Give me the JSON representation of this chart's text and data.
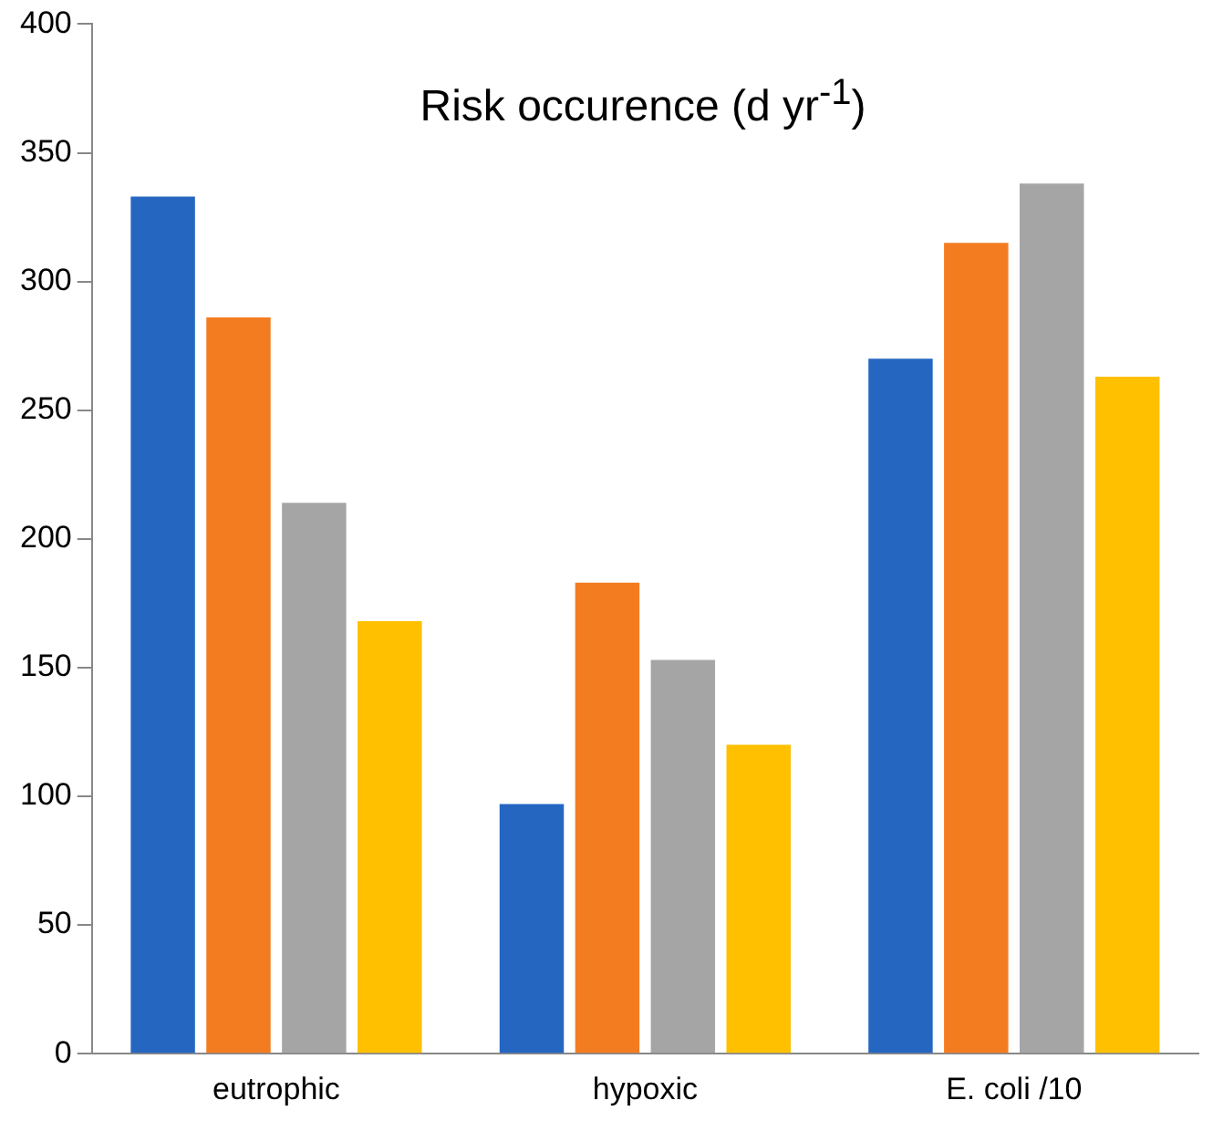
{
  "chart_data": {
    "type": "bar",
    "title": "Risk occurence (d yr$^{-1}$)",
    "categories": [
      "eutrophic",
      "hypoxic",
      "E. coli /10"
    ],
    "series": [
      {
        "color": "#2566c1",
        "values": [
          333,
          97,
          270
        ]
      },
      {
        "color": "#f47c20",
        "values": [
          286,
          183,
          315
        ]
      },
      {
        "color": "#a5a5a5",
        "values": [
          214,
          153,
          338
        ]
      },
      {
        "color": "#ffc000",
        "values": [
          168,
          120,
          263
        ]
      }
    ],
    "ylim": [
      0,
      400
    ],
    "yticks": [
      0,
      50,
      100,
      150,
      200,
      250,
      300,
      350,
      400
    ],
    "grid": false,
    "legend": false
  }
}
